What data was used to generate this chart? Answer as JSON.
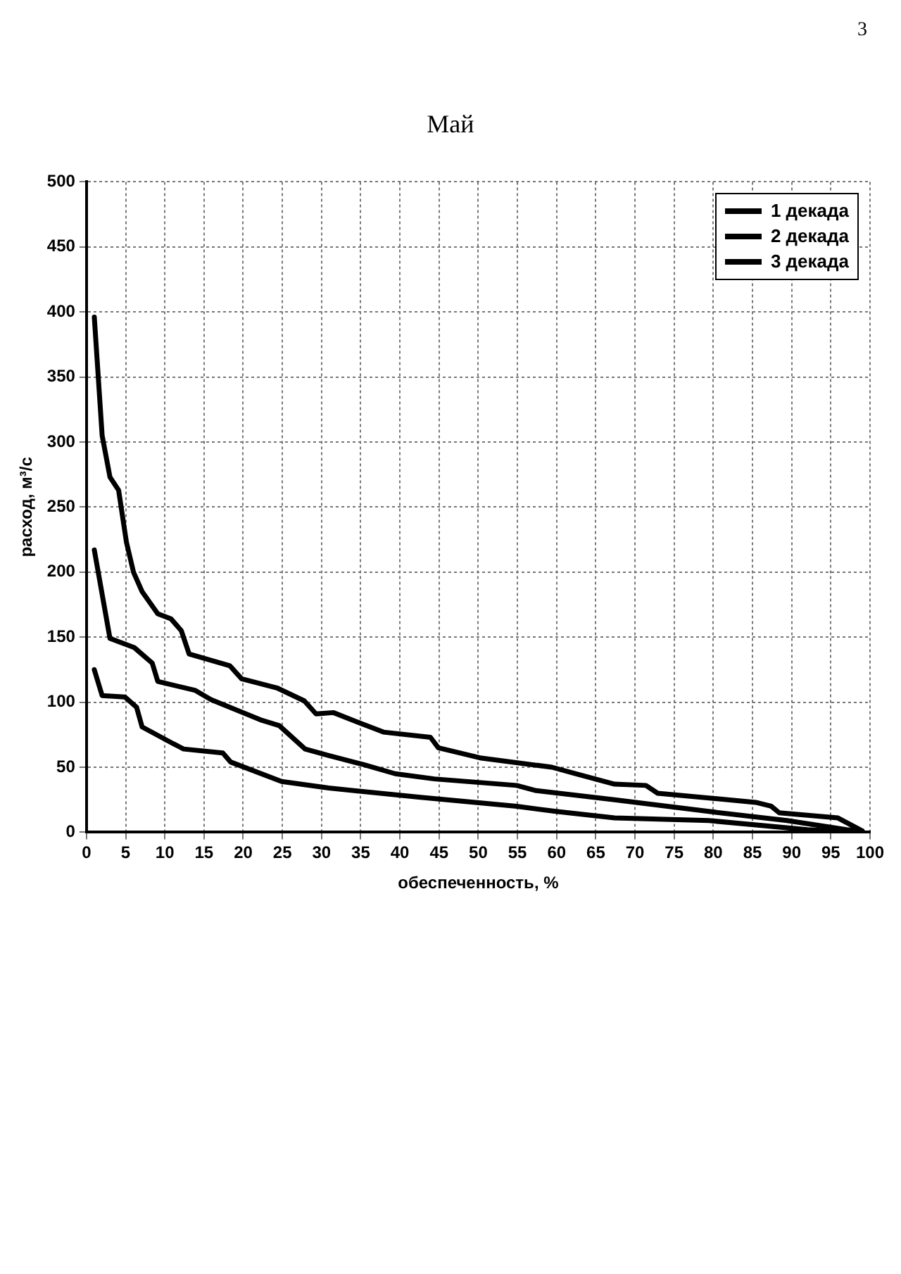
{
  "chart_data": {
    "type": "line",
    "title": "Май",
    "xlabel": "обеспеченность, %",
    "ylabel": "расход, м³/с",
    "annotations": [
      "3"
    ],
    "xlim": [
      0,
      100
    ],
    "xticks": [
      0,
      5,
      10,
      15,
      20,
      25,
      30,
      35,
      40,
      45,
      50,
      55,
      60,
      65,
      70,
      75,
      80,
      85,
      90,
      95,
      100
    ],
    "ylim": [
      0,
      500
    ],
    "yticks": [
      0,
      50,
      100,
      150,
      200,
      250,
      300,
      350,
      400,
      450,
      500
    ],
    "grid": true,
    "legend": "top right",
    "marker": "none",
    "line_style": "solid",
    "series": [
      {
        "name": "1 декада",
        "color": "#000000",
        "x": [
          1,
          2,
          3,
          4.1,
          5.1,
          6,
          7.1,
          9.1,
          10.8,
          12.1,
          13.1,
          18.3,
          19.8,
          24.3,
          27.8,
          29.3,
          31.5,
          34.9,
          37.9,
          43.9,
          44.9,
          50.4,
          59.4,
          62.4,
          64.9,
          67.4,
          71.4,
          72.9,
          85.4,
          87.4,
          88.4,
          95.9,
          98.7,
          99
        ],
        "values": [
          396,
          305,
          273,
          263,
          223,
          200,
          185,
          168,
          164,
          155,
          137,
          128,
          118,
          111,
          101,
          91,
          92,
          84,
          77,
          73,
          65,
          57,
          50,
          45,
          41,
          37,
          36,
          30,
          23,
          20,
          15,
          11,
          2,
          1
        ]
      },
      {
        "name": "2 декада",
        "color": "#000000",
        "x": [
          1,
          3,
          6.1,
          8.4,
          9.1,
          13.9,
          15.9,
          22.4,
          24.6,
          27.9,
          30.9,
          35.4,
          39.4,
          44.4,
          54.9,
          57.4,
          67.4,
          79.4,
          89.4,
          97,
          99
        ],
        "values": [
          217,
          149,
          142,
          130,
          116,
          109,
          102,
          86,
          82,
          64,
          59,
          52,
          45,
          41,
          36,
          32,
          25,
          16,
          9,
          2,
          1
        ]
      },
      {
        "name": "3 декада",
        "color": "#000000",
        "x": [
          1,
          2,
          4.9,
          6.4,
          7.1,
          11.1,
          12.4,
          17.4,
          18.4,
          24.9,
          30.9,
          42.4,
          54.9,
          59.9,
          67.4,
          79.4,
          92,
          99
        ],
        "values": [
          125,
          105,
          104,
          96,
          81,
          68,
          64,
          61,
          54,
          39,
          34,
          27,
          20,
          16,
          11,
          9,
          2,
          0
        ]
      }
    ]
  }
}
